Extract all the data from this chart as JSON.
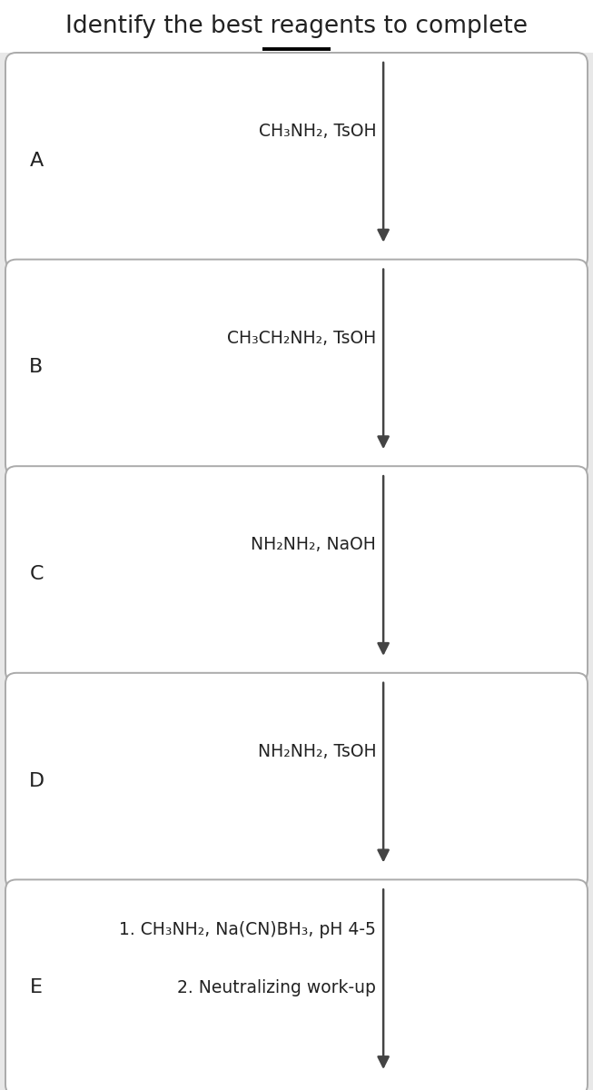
{
  "title": "Identify the best reagents to complete",
  "title_fontsize": 19,
  "bg_color": "#e8e8e8",
  "box_color": "#ffffff",
  "box_edge_color": "#aaaaaa",
  "text_color": "#222222",
  "arrow_color": "#444444",
  "fig_width": 6.53,
  "fig_height": 12.0,
  "options": [
    {
      "label": "A",
      "lines": [
        "CH₃NH₂, TsOH"
      ]
    },
    {
      "label": "B",
      "lines": [
        "CH₃CH₂NH₂, TsOH"
      ]
    },
    {
      "label": "C",
      "lines": [
        "NH₂NH₂, NaOH"
      ]
    },
    {
      "label": "D",
      "lines": [
        "NH₂NH₂, TsOH"
      ]
    },
    {
      "label": "E",
      "lines": [
        "1. CH₃NH₂, Na(CN)BH₃, pH 4-5",
        "2. Neutralizing work-up"
      ]
    }
  ]
}
